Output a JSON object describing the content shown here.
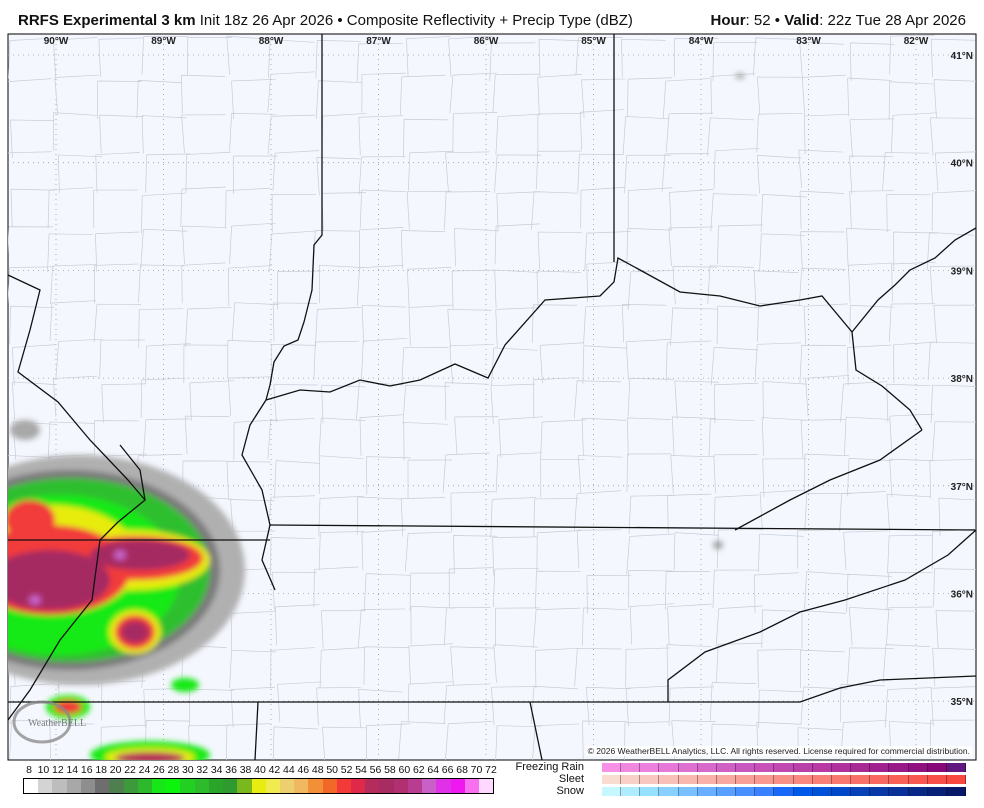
{
  "header": {
    "model": "RRFS Experimental 3 km",
    "init": "Init 18z 26 Apr 2026",
    "separator": "•",
    "product": "Composite Reflectivity + Precip Type (dBZ)",
    "hour_label": "Hour",
    "hour": ": 52",
    "valid_label": "Valid",
    "valid": ": 22z Tue 28 Apr 2026"
  },
  "map": {
    "longitude_labels": [
      "90°W",
      "89°W",
      "88°W",
      "87°W",
      "86°W",
      "85°W",
      "84°W",
      "83°W",
      "82°W"
    ],
    "latitude_labels": [
      "41°N",
      "40°N",
      "39°N",
      "38°N",
      "37°N",
      "36°N",
      "35°N"
    ],
    "logo_text": "WeatherBELL",
    "copyright": "© 2026 WeatherBELL Analytics, LLC. All rights reserved. License required for commercial distribution."
  },
  "legend": {
    "reflectivity_ticks": [
      "8",
      "10",
      "12",
      "14",
      "16",
      "18",
      "20",
      "22",
      "24",
      "26",
      "28",
      "30",
      "32",
      "34",
      "36",
      "38",
      "40",
      "42",
      "44",
      "46",
      "48",
      "50",
      "52",
      "54",
      "56",
      "58",
      "60",
      "62",
      "64",
      "66",
      "68",
      "70",
      "72"
    ],
    "reflectivity_colors": [
      "#ffffff",
      "#d4d4d4",
      "#bdbdbd",
      "#a8a8a8",
      "#8e8e8e",
      "#6e6e6e",
      "#4f7f4f",
      "#3c9a3c",
      "#2eb82e",
      "#17e617",
      "#0cf40c",
      "#22d022",
      "#2bbb2b",
      "#2aa52a",
      "#2f9a2f",
      "#7ab81e",
      "#e8ec10",
      "#f0ec50",
      "#ecd070",
      "#f0b860",
      "#f29038",
      "#f26828",
      "#f23a3a",
      "#e02848",
      "#b42c5c",
      "#a62c62",
      "#b03070",
      "#b83c90",
      "#c860c8",
      "#e030e8",
      "#f018f0",
      "#f870f0",
      "#ffd8ff"
    ],
    "ptype_labels": [
      "Freezing Rain",
      "Sleet",
      "Snow"
    ],
    "freezing_rain_colors": [
      "#f890e8",
      "#f088e0",
      "#ec80dc",
      "#e878d8",
      "#e070d0",
      "#d868cc",
      "#d060c4",
      "#c858c0",
      "#c850b8",
      "#c048b0",
      "#b840a8",
      "#b838a4",
      "#b0309c",
      "#a82894",
      "#a02090",
      "#981888",
      "#901080",
      "#880878",
      "#601880"
    ],
    "sleet_colors": [
      "#f8dcd0",
      "#f8d0c8",
      "#f8c8c0",
      "#f8c0b8",
      "#f8b8b0",
      "#f8b0a8",
      "#f8a8a0",
      "#f8a098",
      "#f89890",
      "#f89088",
      "#f88880",
      "#f88078",
      "#f87870",
      "#f87068",
      "#f86860",
      "#f86058",
      "#f85850",
      "#f85048",
      "#f84840"
    ],
    "snow_colors": [
      "#c8f8ff",
      "#b0ecff",
      "#98e0ff",
      "#88d0ff",
      "#78c0ff",
      "#68b0ff",
      "#58a0ff",
      "#4890ff",
      "#3880ff",
      "#1868f8",
      "#0058e8",
      "#0050d8",
      "#0048c8",
      "#0840b8",
      "#0838a8",
      "#083098",
      "#082888",
      "#082078",
      "#081868"
    ]
  }
}
